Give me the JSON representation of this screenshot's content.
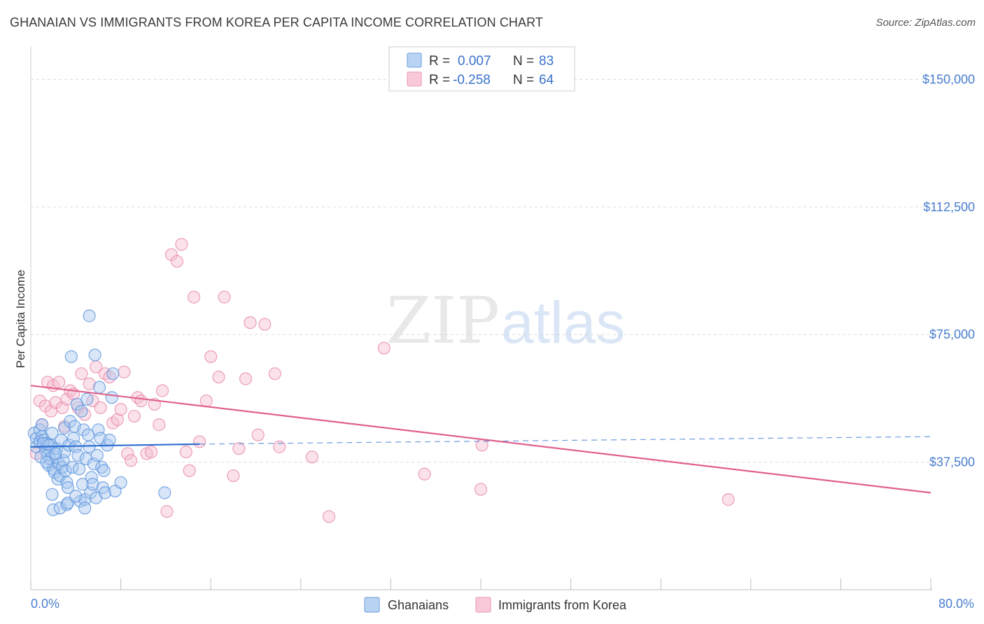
{
  "header": {
    "title": "GHANAIAN VS IMMIGRANTS FROM KOREA PER CAPITA INCOME CORRELATION CHART",
    "source": "Source: ZipAtlas.com"
  },
  "watermark": {
    "part1": "ZIP",
    "part2": "atlas"
  },
  "colors": {
    "blue_fill": "#a9c8f0",
    "blue_stroke": "#5b93dc",
    "blue_line": "#2f6fd0",
    "pink_fill": "#f5bcd0",
    "pink_stroke": "#e98aaa",
    "pink_line": "#e0608e",
    "label": "#4a7fd0",
    "grid": "#dcdcdc"
  },
  "chart_data": {
    "type": "scatter",
    "title": "GHANAIAN VS IMMIGRANTS FROM KOREA PER CAPITA INCOME CORRELATION CHART",
    "xlabel": "",
    "ylabel": "Per Capita Income",
    "xlim": [
      0,
      80
    ],
    "ylim": [
      0,
      157500
    ],
    "x_tick_labels": [
      "0.0%",
      "80.0%"
    ],
    "y_ticks": [
      37500,
      75000,
      112500,
      150000
    ],
    "y_tick_labels": [
      "$37,500",
      "$75,000",
      "$112,500",
      "$150,000"
    ],
    "legend_stats": [
      {
        "r_label": "R =",
        "r_value": "0.007",
        "n_label": "N =",
        "n_value": "83"
      },
      {
        "r_label": "R =",
        "r_value": "-0.258",
        "n_label": "N =",
        "n_value": "64"
      }
    ],
    "series": [
      {
        "name": "Ghanaians",
        "color": "blue",
        "trend": {
          "x": [
            0,
            15
          ],
          "y": [
            42000,
            42800
          ],
          "dashed_to": [
            80,
            45000
          ]
        },
        "points": [
          [
            0.3,
            46000
          ],
          [
            0.5,
            44500
          ],
          [
            0.5,
            42000
          ],
          [
            0.8,
            47000
          ],
          [
            0.8,
            43500
          ],
          [
            1.0,
            48500
          ],
          [
            1.0,
            45000
          ],
          [
            1.2,
            44000
          ],
          [
            1.3,
            41000
          ],
          [
            1.4,
            43000
          ],
          [
            1.5,
            39500
          ],
          [
            1.6,
            36500
          ],
          [
            1.7,
            38500
          ],
          [
            1.8,
            42500
          ],
          [
            1.9,
            46000
          ],
          [
            2.0,
            35500
          ],
          [
            2.1,
            34500
          ],
          [
            2.2,
            39000
          ],
          [
            2.3,
            41500
          ],
          [
            2.4,
            32500
          ],
          [
            2.5,
            37000
          ],
          [
            2.6,
            33500
          ],
          [
            2.7,
            44000
          ],
          [
            2.8,
            36000
          ],
          [
            2.9,
            38000
          ],
          [
            3.0,
            47500
          ],
          [
            3.0,
            40500
          ],
          [
            3.1,
            35000
          ],
          [
            3.2,
            31500
          ],
          [
            3.3,
            30000
          ],
          [
            3.4,
            42500
          ],
          [
            3.5,
            49500
          ],
          [
            3.6,
            68500
          ],
          [
            3.7,
            36000
          ],
          [
            3.8,
            44500
          ],
          [
            3.9,
            48000
          ],
          [
            4.0,
            42000
          ],
          [
            4.1,
            54500
          ],
          [
            4.2,
            39500
          ],
          [
            4.3,
            35500
          ],
          [
            4.4,
            26000
          ],
          [
            4.5,
            52500
          ],
          [
            4.6,
            31000
          ],
          [
            4.7,
            47000
          ],
          [
            4.8,
            26500
          ],
          [
            4.9,
            38500
          ],
          [
            5.0,
            56000
          ],
          [
            5.1,
            45500
          ],
          [
            5.2,
            42000
          ],
          [
            5.3,
            28500
          ],
          [
            5.4,
            33000
          ],
          [
            5.5,
            31000
          ],
          [
            5.6,
            37000
          ],
          [
            5.7,
            69000
          ],
          [
            5.8,
            27000
          ],
          [
            5.9,
            39500
          ],
          [
            6.0,
            47000
          ],
          [
            6.1,
            59500
          ],
          [
            6.2,
            44500
          ],
          [
            6.3,
            36000
          ],
          [
            6.4,
            30000
          ],
          [
            6.5,
            35000
          ],
          [
            6.6,
            28500
          ],
          [
            6.8,
            42500
          ],
          [
            7.0,
            44000
          ],
          [
            7.2,
            56500
          ],
          [
            7.3,
            63500
          ],
          [
            7.5,
            29000
          ],
          [
            8.0,
            31500
          ],
          [
            11.9,
            28500
          ],
          [
            5.2,
            80500
          ],
          [
            2.0,
            23500
          ],
          [
            2.6,
            24000
          ],
          [
            3.2,
            25000
          ],
          [
            4.8,
            24000
          ],
          [
            0.9,
            39000
          ],
          [
            1.1,
            43000
          ],
          [
            1.6,
            42500
          ],
          [
            2.2,
            40000
          ],
          [
            1.4,
            37500
          ],
          [
            3.3,
            25500
          ],
          [
            1.9,
            28000
          ],
          [
            4.0,
            27500
          ]
        ]
      },
      {
        "name": "Immigrants from Korea",
        "color": "pink",
        "trend": {
          "x": [
            0,
            80
          ],
          "y": [
            60000,
            28500
          ]
        },
        "points": [
          [
            0.5,
            40000
          ],
          [
            0.8,
            55500
          ],
          [
            1.0,
            48500
          ],
          [
            1.3,
            54000
          ],
          [
            1.5,
            61000
          ],
          [
            1.8,
            52500
          ],
          [
            2.0,
            60000
          ],
          [
            2.2,
            55000
          ],
          [
            2.5,
            61000
          ],
          [
            2.8,
            53500
          ],
          [
            3.0,
            48000
          ],
          [
            3.2,
            56000
          ],
          [
            3.5,
            58500
          ],
          [
            3.8,
            57500
          ],
          [
            4.2,
            53500
          ],
          [
            4.5,
            63500
          ],
          [
            4.8,
            51500
          ],
          [
            5.2,
            60500
          ],
          [
            5.5,
            55500
          ],
          [
            5.8,
            65500
          ],
          [
            6.2,
            53500
          ],
          [
            6.6,
            63500
          ],
          [
            7.0,
            62500
          ],
          [
            7.3,
            49000
          ],
          [
            7.7,
            50000
          ],
          [
            8.0,
            53000
          ],
          [
            8.3,
            64000
          ],
          [
            8.6,
            40000
          ],
          [
            8.9,
            38000
          ],
          [
            9.2,
            51000
          ],
          [
            9.5,
            56500
          ],
          [
            9.8,
            55500
          ],
          [
            10.3,
            40000
          ],
          [
            10.7,
            40500
          ],
          [
            11.0,
            54500
          ],
          [
            11.4,
            48500
          ],
          [
            11.7,
            58500
          ],
          [
            12.1,
            23000
          ],
          [
            12.5,
            98500
          ],
          [
            13.0,
            96500
          ],
          [
            13.4,
            101500
          ],
          [
            13.8,
            40500
          ],
          [
            14.1,
            35000
          ],
          [
            14.5,
            86000
          ],
          [
            15.0,
            43500
          ],
          [
            15.6,
            55500
          ],
          [
            16.0,
            68500
          ],
          [
            16.7,
            62500
          ],
          [
            17.2,
            86000
          ],
          [
            18.0,
            33500
          ],
          [
            18.5,
            41500
          ],
          [
            19.1,
            62000
          ],
          [
            19.5,
            78500
          ],
          [
            20.2,
            45500
          ],
          [
            20.8,
            78000
          ],
          [
            21.7,
            63500
          ],
          [
            22.1,
            42000
          ],
          [
            25.0,
            39000
          ],
          [
            26.5,
            21500
          ],
          [
            31.4,
            71000
          ],
          [
            35.0,
            34000
          ],
          [
            40.0,
            29500
          ],
          [
            40.1,
            42500
          ],
          [
            62.0,
            26500
          ]
        ]
      }
    ]
  },
  "bottom_legend": [
    "Ghanaians",
    "Immigrants from Korea"
  ]
}
